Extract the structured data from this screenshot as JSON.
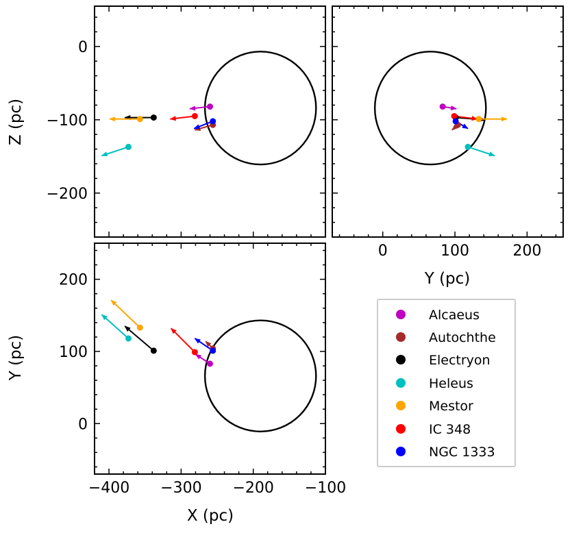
{
  "chart_data": [
    {
      "panel": "top-left",
      "type": "scatter",
      "xlabel": "",
      "ylabel": "Z (pc)",
      "xlim": [
        -420,
        -100
      ],
      "ylim": [
        -260,
        55
      ],
      "xticks": [
        -400,
        -300,
        -200,
        -100
      ],
      "yticks": [
        0,
        -100,
        -200
      ],
      "ytick_labels": [
        "0",
        "−100",
        "−200"
      ],
      "show_xtick_labels": false,
      "circle": {
        "cx": -190,
        "cy": -84,
        "r": 77
      },
      "points": [
        {
          "name": "Alcaeus",
          "x": -260,
          "y": -82,
          "dx": -28,
          "dy": -3
        },
        {
          "name": "Autochthe",
          "x": -256,
          "y": -107,
          "dx": -25,
          "dy": -7
        },
        {
          "name": "Electryon",
          "x": -338,
          "y": -97,
          "dx": -40,
          "dy": 0
        },
        {
          "name": "Heleus",
          "x": -373,
          "y": -137,
          "dx": -37,
          "dy": -12
        },
        {
          "name": "Mestor",
          "x": -357,
          "y": -99,
          "dx": -42,
          "dy": 0
        },
        {
          "name": "IC 348",
          "x": -281,
          "y": -95,
          "dx": -34,
          "dy": -4
        },
        {
          "name": "NGC 1333",
          "x": -256,
          "y": -102,
          "dx": -26,
          "dy": -10
        }
      ]
    },
    {
      "panel": "top-right",
      "type": "scatter",
      "xlabel": "Y (pc)",
      "ylabel": "",
      "xlim": [
        -70,
        250
      ],
      "ylim": [
        -260,
        55
      ],
      "xticks": [
        0,
        100,
        200
      ],
      "xtick_labels": [
        "0",
        "100",
        "200"
      ],
      "yticks": [
        0,
        -100,
        -200
      ],
      "show_ytick_labels": false,
      "circle": {
        "cx": 66,
        "cy": -84,
        "r": 77
      },
      "points": [
        {
          "name": "Alcaeus",
          "x": 83,
          "y": -82,
          "dx": 19,
          "dy": -3
        },
        {
          "name": "Autochthe",
          "x": 104,
          "y": -107,
          "dx": -8,
          "dy": -7
        },
        {
          "name": "Electryon",
          "x": 101,
          "y": -97,
          "dx": 41,
          "dy": -3
        },
        {
          "name": "Heleus",
          "x": 118,
          "y": -137,
          "dx": 37,
          "dy": -12
        },
        {
          "name": "Mestor",
          "x": 133,
          "y": -99,
          "dx": 39,
          "dy": 0
        },
        {
          "name": "IC 348",
          "x": 99,
          "y": -95,
          "dx": 32,
          "dy": -4
        },
        {
          "name": "NGC 1333",
          "x": 101,
          "y": -102,
          "dx": 17,
          "dy": -10
        }
      ]
    },
    {
      "panel": "bottom-left",
      "type": "scatter",
      "xlabel": "X (pc)",
      "ylabel": "Y (pc)",
      "xlim": [
        -420,
        -100
      ],
      "ylim": [
        -70,
        250
      ],
      "xticks": [
        -400,
        -300,
        -200,
        -100
      ],
      "xtick_labels": [
        "−400",
        "−300",
        "−200",
        "−100"
      ],
      "yticks": [
        0,
        100,
        200
      ],
      "ytick_labels": [
        "0",
        "100",
        "200"
      ],
      "circle": {
        "cx": -190,
        "cy": 66,
        "r": 77
      },
      "points": [
        {
          "name": "Alcaeus",
          "x": -260,
          "y": 83,
          "dx": -20,
          "dy": 13
        },
        {
          "name": "Autochthe",
          "x": -256,
          "y": 104,
          "dx": -10,
          "dy": 10
        },
        {
          "name": "Electryon",
          "x": -338,
          "y": 101,
          "dx": -40,
          "dy": 34
        },
        {
          "name": "Heleus",
          "x": -373,
          "y": 118,
          "dx": -37,
          "dy": 33
        },
        {
          "name": "Mestor",
          "x": -357,
          "y": 133,
          "dx": -40,
          "dy": 38
        },
        {
          "name": "IC 348",
          "x": -281,
          "y": 99,
          "dx": -33,
          "dy": 33
        },
        {
          "name": "NGC 1333",
          "x": -256,
          "y": 101,
          "dx": -25,
          "dy": 17
        }
      ]
    }
  ],
  "legend": {
    "placement": "bottom-right",
    "entries": [
      {
        "name": "Alcaeus",
        "color": "#c000c0"
      },
      {
        "name": "Autochthe",
        "color": "#a52a2a"
      },
      {
        "name": "Electryon",
        "color": "#000000"
      },
      {
        "name": "Heleus",
        "color": "#00bfbf"
      },
      {
        "name": "Mestor",
        "color": "#ffa500"
      },
      {
        "name": "IC 348",
        "color": "#ff0000"
      },
      {
        "name": "NGC 1333",
        "color": "#0000ff"
      }
    ]
  }
}
